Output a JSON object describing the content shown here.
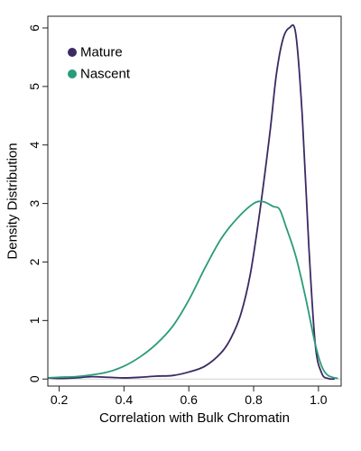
{
  "chart_data": {
    "type": "line",
    "title": "",
    "xlabel": "Correlation with Bulk Chromatin",
    "ylabel": "Density Distribution",
    "xlim": [
      0.165,
      1.07
    ],
    "ylim": [
      -0.12,
      6.2
    ],
    "xticks": [
      0.2,
      0.4,
      0.6,
      0.8,
      1.0
    ],
    "xtick_labels": [
      "0.2",
      "0.4",
      "0.6",
      "0.8",
      "1.0"
    ],
    "yticks": [
      0,
      1,
      2,
      3,
      4,
      5,
      6
    ],
    "ytick_labels": [
      "0",
      "1",
      "2",
      "3",
      "4",
      "5",
      "6"
    ],
    "grid": false,
    "baseline": 0,
    "legend": {
      "position": "top-left"
    },
    "series": [
      {
        "name": "Mature",
        "color": "#3b2a63",
        "points": [
          [
            0.165,
            0.02
          ],
          [
            0.2,
            0.01
          ],
          [
            0.25,
            0.02
          ],
          [
            0.3,
            0.04
          ],
          [
            0.35,
            0.03
          ],
          [
            0.4,
            0.02
          ],
          [
            0.45,
            0.03
          ],
          [
            0.5,
            0.05
          ],
          [
            0.55,
            0.06
          ],
          [
            0.6,
            0.12
          ],
          [
            0.65,
            0.22
          ],
          [
            0.7,
            0.45
          ],
          [
            0.73,
            0.7
          ],
          [
            0.76,
            1.1
          ],
          [
            0.79,
            1.8
          ],
          [
            0.82,
            2.9
          ],
          [
            0.85,
            4.2
          ],
          [
            0.87,
            5.2
          ],
          [
            0.89,
            5.8
          ],
          [
            0.91,
            6.0
          ],
          [
            0.93,
            5.9
          ],
          [
            0.95,
            4.5
          ],
          [
            0.97,
            2.3
          ],
          [
            0.99,
            0.6
          ],
          [
            1.01,
            0.1
          ],
          [
            1.03,
            0.01
          ],
          [
            1.05,
            0.0
          ]
        ]
      },
      {
        "name": "Nascent",
        "color": "#2a9b7a",
        "points": [
          [
            0.165,
            0.02
          ],
          [
            0.2,
            0.03
          ],
          [
            0.25,
            0.04
          ],
          [
            0.3,
            0.07
          ],
          [
            0.35,
            0.12
          ],
          [
            0.4,
            0.22
          ],
          [
            0.45,
            0.38
          ],
          [
            0.5,
            0.6
          ],
          [
            0.55,
            0.9
          ],
          [
            0.6,
            1.35
          ],
          [
            0.65,
            1.9
          ],
          [
            0.7,
            2.4
          ],
          [
            0.75,
            2.75
          ],
          [
            0.8,
            3.0
          ],
          [
            0.83,
            3.03
          ],
          [
            0.86,
            2.95
          ],
          [
            0.88,
            2.9
          ],
          [
            0.9,
            2.6
          ],
          [
            0.93,
            2.1
          ],
          [
            0.96,
            1.4
          ],
          [
            0.99,
            0.6
          ],
          [
            1.01,
            0.22
          ],
          [
            1.03,
            0.06
          ],
          [
            1.06,
            0.01
          ]
        ]
      }
    ]
  }
}
